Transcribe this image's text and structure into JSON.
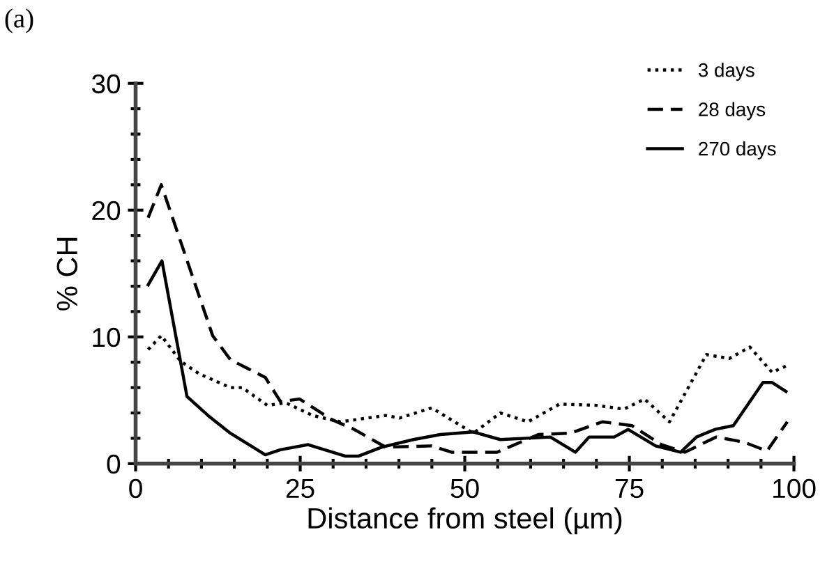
{
  "chart_data": {
    "type": "line",
    "title": "(a)",
    "xlabel": "Distance from steel (µm)",
    "ylabel": "% CH",
    "xlim": [
      0,
      100
    ],
    "xticks": [
      0,
      25,
      50,
      75,
      100
    ],
    "ylim": [
      0,
      30
    ],
    "yticks": [
      0,
      10,
      20,
      30
    ],
    "grid": false,
    "legend": "top right",
    "marker": "none",
    "series": [
      {
        "name": "3 days",
        "color": "#000000",
        "line_style": "dotted",
        "x": [
          1.9,
          3.9,
          6.8,
          9.6,
          14.4,
          16.2,
          20,
          22.8,
          26.9,
          31.1,
          38,
          40.1,
          45,
          47.5,
          51.3,
          55.4,
          59.6,
          64.4,
          70,
          74.2,
          77.3,
          81.1,
          86.7,
          90.2,
          93.3,
          96.7,
          98.8
        ],
        "values": [
          9.0,
          10.1,
          8.1,
          7.1,
          6.0,
          6.0,
          4.6,
          4.8,
          3.8,
          3.3,
          3.8,
          3.6,
          4.4,
          3.6,
          2.4,
          4.0,
          3.3,
          4.7,
          4.6,
          4.3,
          5.1,
          3.3,
          8.6,
          8.3,
          9.2,
          7.2,
          7.7
        ]
      },
      {
        "name": "28 days",
        "color": "#000000",
        "line_style": "dashed",
        "x": [
          1.9,
          3.9,
          11.7,
          14.4,
          19.7,
          22,
          24.9,
          29.7,
          33.2,
          38,
          45,
          48,
          54.9,
          61.2,
          66,
          70.9,
          75.4,
          79.9,
          83.4,
          88.2,
          92.4,
          95.9,
          99
        ],
        "values": [
          19.4,
          22.0,
          10.1,
          8.2,
          6.8,
          4.9,
          5.1,
          3.5,
          2.7,
          1.3,
          1.4,
          0.9,
          0.9,
          2.3,
          2.4,
          3.3,
          3.0,
          1.5,
          0.9,
          2.1,
          1.7,
          1.0,
          3.3
        ]
      },
      {
        "name": "270 days",
        "color": "#000000",
        "line_style": "solid",
        "x": [
          1.9,
          4,
          7.8,
          11,
          14.4,
          19.7,
          22,
          26.2,
          31.8,
          33.9,
          37.4,
          42.2,
          46.3,
          51.3,
          55.4,
          63,
          66.8,
          68.9,
          72.7,
          74.8,
          79,
          82.8,
          85.2,
          88,
          90.8,
          95.3,
          96.7,
          98.8
        ],
        "values": [
          14.1,
          16.0,
          5.3,
          3.8,
          2.4,
          0.7,
          1.1,
          1.5,
          0.6,
          0.6,
          1.3,
          1.9,
          2.3,
          2.5,
          1.9,
          2.1,
          0.9,
          2.1,
          2.1,
          2.7,
          1.4,
          0.9,
          2.1,
          2.7,
          3.0,
          6.4,
          6.4,
          5.7
        ]
      }
    ]
  }
}
